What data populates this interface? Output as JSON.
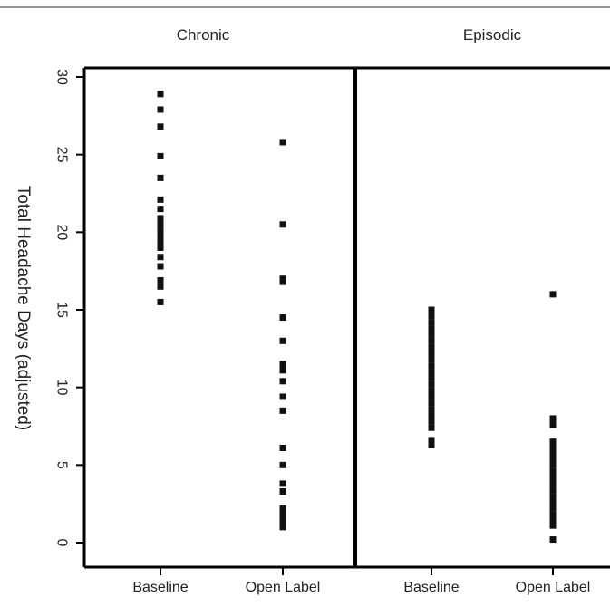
{
  "chart_data": {
    "type": "scatter",
    "ylabel": "Total Headache Days (adjusted)",
    "xlabel": "",
    "ylim": [
      0,
      30
    ],
    "yticks": [
      0,
      5,
      10,
      15,
      20,
      25,
      30
    ],
    "categories": [
      "Baseline",
      "Open Label"
    ],
    "marker_color": "#111111",
    "panels": [
      {
        "title": "Chronic",
        "series": [
          {
            "category": "Baseline",
            "values": [
              28.9,
              27.9,
              26.8,
              24.9,
              23.5,
              22.1,
              21.5,
              20.9,
              20.5,
              20.1,
              19.7,
              19.4,
              19.0,
              18.4,
              17.8,
              16.9,
              16.5,
              15.5
            ]
          },
          {
            "category": "Open Label",
            "values": [
              25.8,
              20.5,
              17.0,
              16.8,
              14.5,
              13.0,
              11.5,
              11.1,
              10.4,
              9.4,
              8.5,
              6.1,
              5.0,
              3.8,
              3.3,
              2.2,
              1.9,
              1.6,
              1.3,
              1.0
            ]
          }
        ]
      },
      {
        "title": "Episodic",
        "series": [
          {
            "category": "Baseline",
            "values": [
              15.0,
              14.6,
              14.2,
              13.8,
              13.4,
              13.0,
              12.6,
              12.2,
              11.8,
              11.4,
              11.0,
              10.6,
              10.2,
              9.8,
              9.4,
              9.0,
              8.6,
              8.2,
              7.8,
              7.4,
              6.6,
              6.3
            ]
          },
          {
            "category": "Open Label",
            "values": [
              16.0,
              8.0,
              7.6,
              6.5,
              6.2,
              5.9,
              5.6,
              5.3,
              5.0,
              4.6,
              4.2,
              3.8,
              3.4,
              3.0,
              2.6,
              2.2,
              1.8,
              1.4,
              1.1,
              0.2
            ]
          }
        ]
      }
    ]
  }
}
